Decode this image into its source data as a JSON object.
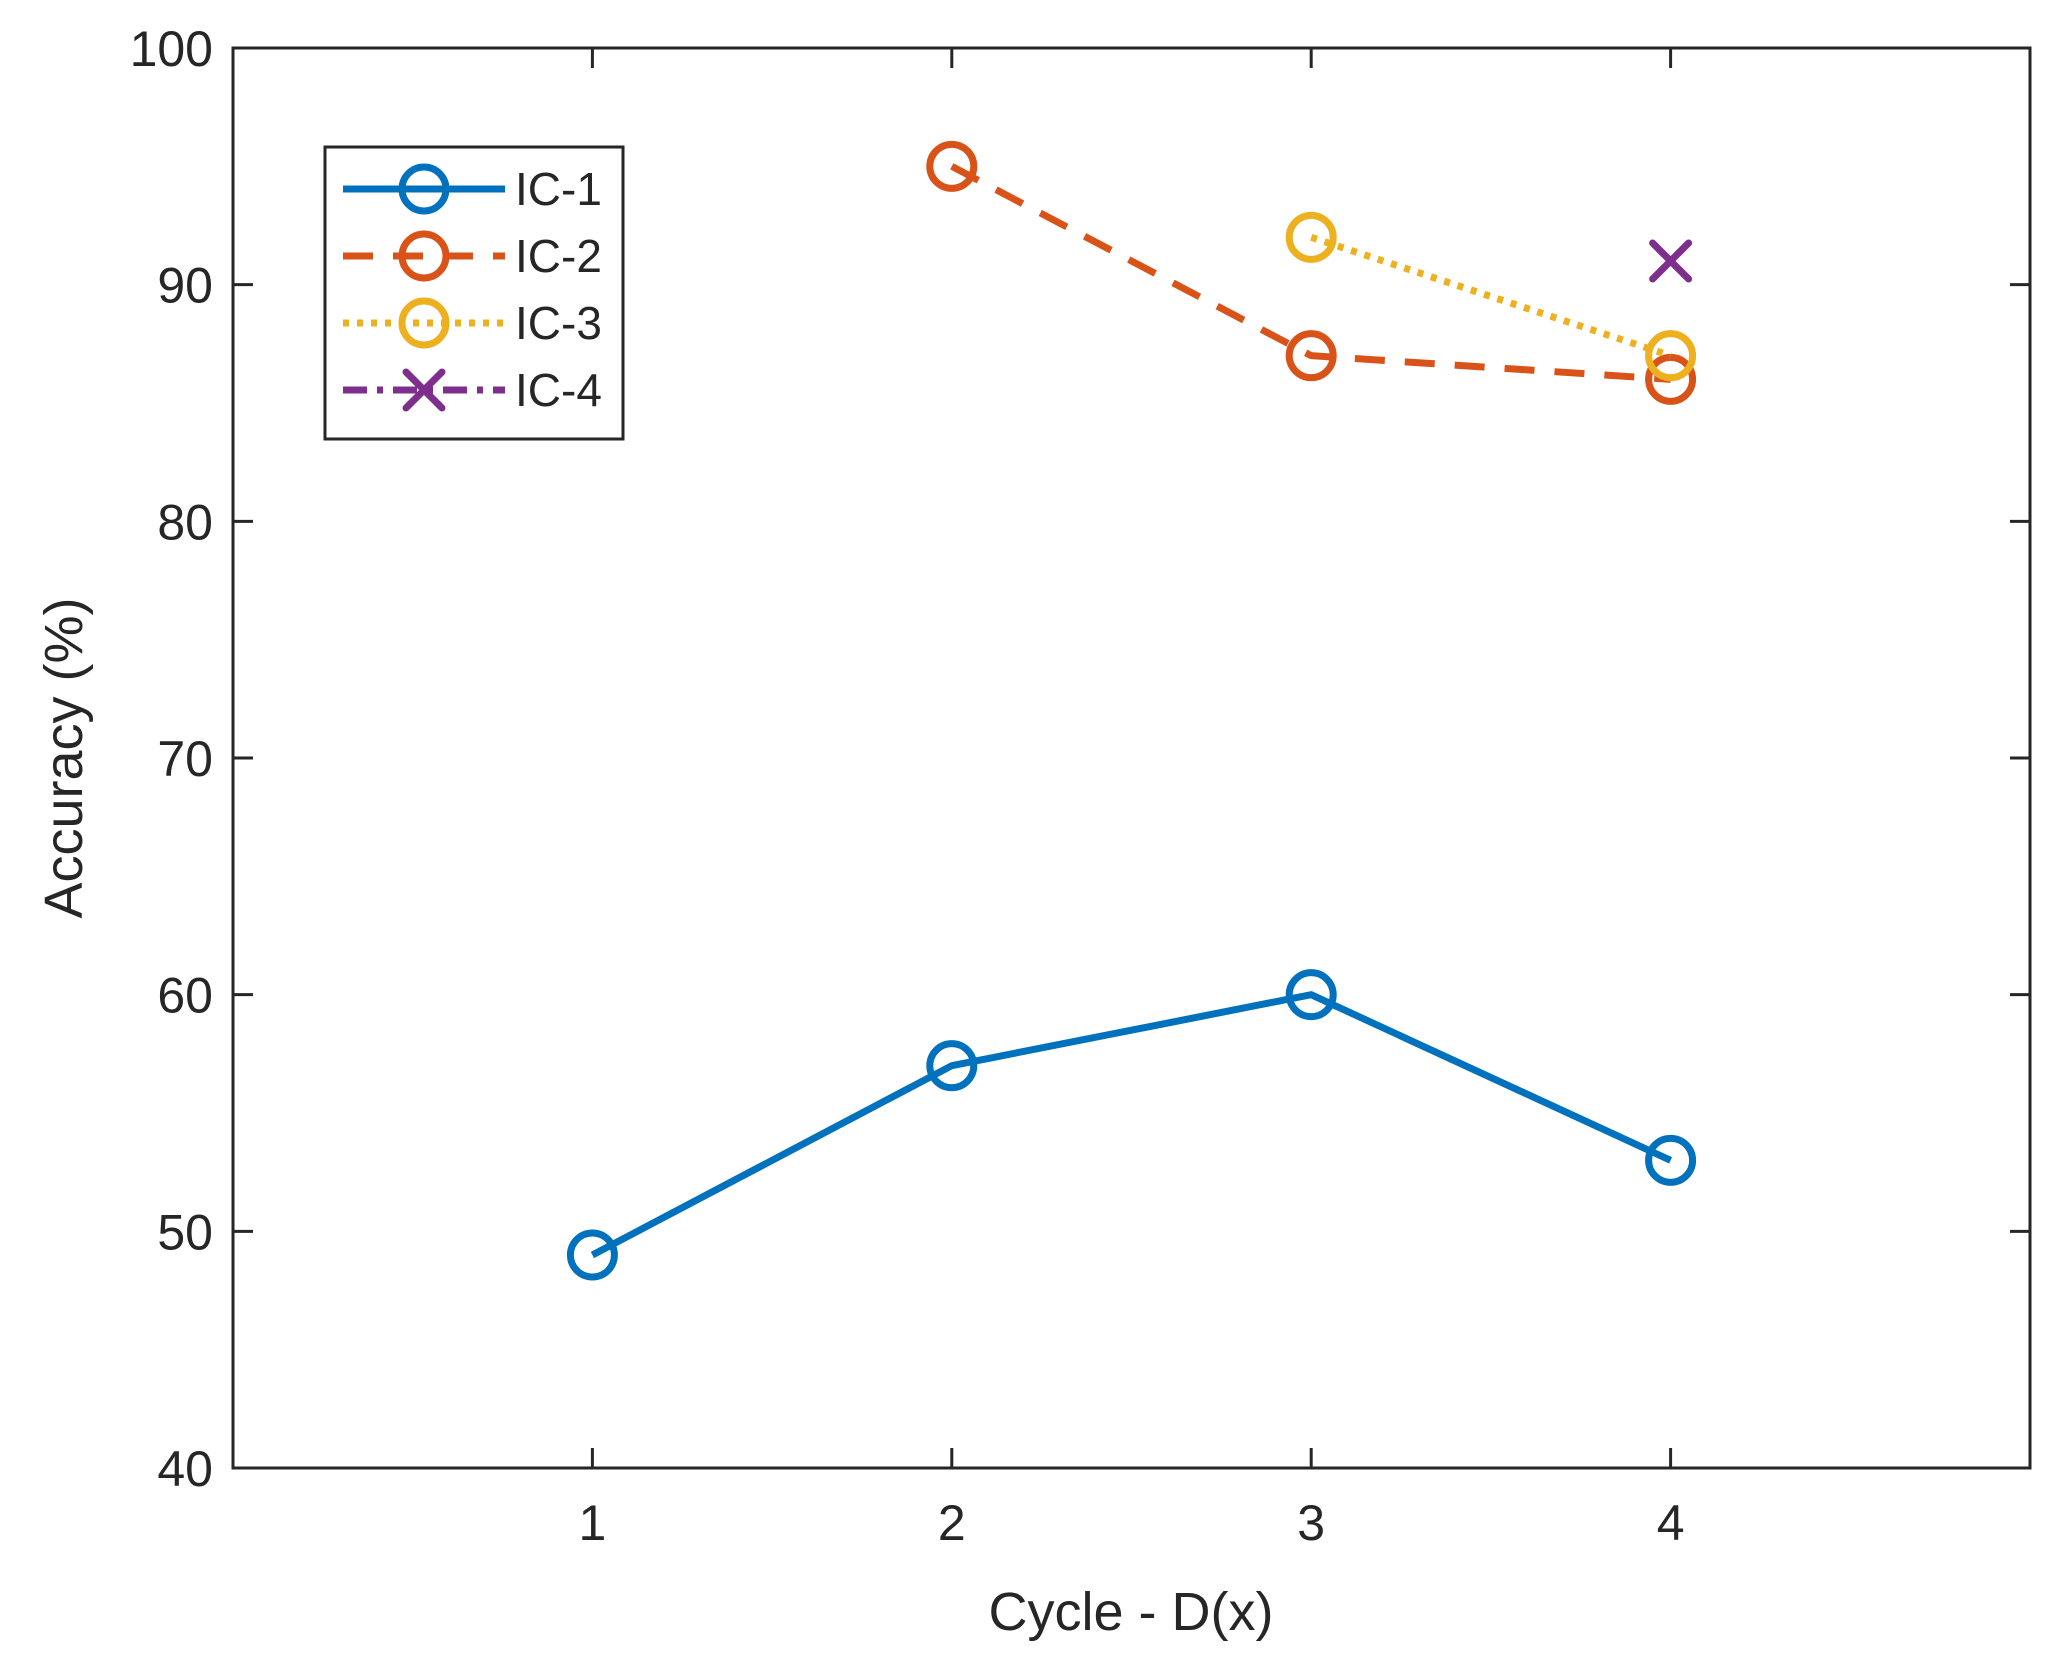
{
  "chart_data": {
    "type": "line",
    "title": "",
    "xlabel": "Cycle - D(x)",
    "ylabel": "Accuracy (%)",
    "xlim": [
      0,
      5
    ],
    "ylim": [
      40,
      100
    ],
    "xticks": [
      1,
      2,
      3,
      4
    ],
    "yticks": [
      40,
      50,
      60,
      70,
      80,
      90,
      100
    ],
    "grid": false,
    "legend_position": "top-left",
    "series": [
      {
        "name": "IC-1",
        "x": [
          1,
          2,
          3,
          4
        ],
        "values": [
          49,
          57,
          60,
          53
        ],
        "color": "#0072BD",
        "line_style": "solid",
        "marker": "circle"
      },
      {
        "name": "IC-2",
        "x": [
          2,
          3,
          4
        ],
        "values": [
          95,
          87,
          86
        ],
        "color": "#D95319",
        "line_style": "dashed",
        "marker": "circle"
      },
      {
        "name": "IC-3",
        "x": [
          3,
          4
        ],
        "values": [
          92,
          87
        ],
        "color": "#EDB120",
        "line_style": "dotted",
        "marker": "circle"
      },
      {
        "name": "IC-4",
        "x": [
          4
        ],
        "values": [
          91
        ],
        "color": "#7E2F8E",
        "line_style": "dashdot",
        "marker": "x"
      }
    ]
  }
}
